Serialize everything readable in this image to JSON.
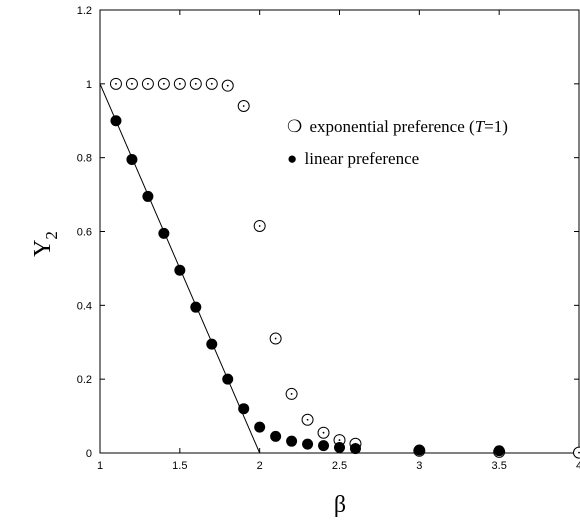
{
  "chart_data": {
    "type": "scatter",
    "xlabel": "β",
    "ylabel_main": "Y",
    "ylabel_sub": "2",
    "xlim": [
      1,
      4
    ],
    "ylim": [
      0,
      1.2
    ],
    "xticks": [
      1,
      1.5,
      2,
      2.5,
      3,
      3.5,
      4
    ],
    "yticks": [
      0,
      0.2,
      0.4,
      0.6,
      0.8,
      1,
      1.2
    ],
    "xtick_labels": [
      "1",
      "1.5",
      "2",
      "2.5",
      "3",
      "3.5",
      "4"
    ],
    "ytick_labels": [
      "0",
      "0.2",
      "0.4",
      "0.6",
      "0.8",
      "1",
      "1.2"
    ],
    "grid": false,
    "legend_position": "top-right",
    "legend": [
      {
        "symbol": "❍",
        "label_pre": "exponential preference (",
        "label_italic": "T",
        "label_post": "=1)"
      },
      {
        "symbol": "●",
        "label": "linear preference"
      }
    ],
    "series": [
      {
        "name": "exponential preference (T=1)",
        "marker": "open-circle-dot",
        "x": [
          1.1,
          1.2,
          1.3,
          1.4,
          1.5,
          1.6,
          1.7,
          1.8,
          1.9,
          2.0,
          2.1,
          2.2,
          2.3,
          2.4,
          2.5,
          2.6,
          3.0,
          3.5,
          4.0
        ],
        "y": [
          1.0,
          1.0,
          1.0,
          1.0,
          1.0,
          1.0,
          1.0,
          0.995,
          0.94,
          0.615,
          0.31,
          0.16,
          0.09,
          0.055,
          0.035,
          0.025,
          0.006,
          0.003,
          0.001
        ]
      },
      {
        "name": "linear preference",
        "marker": "filled-circle",
        "x": [
          1.1,
          1.2,
          1.3,
          1.4,
          1.5,
          1.6,
          1.7,
          1.8,
          1.9,
          2.0,
          2.1,
          2.2,
          2.3,
          2.4,
          2.5,
          2.6,
          3.0,
          3.5
        ],
        "y": [
          0.9,
          0.795,
          0.695,
          0.595,
          0.495,
          0.395,
          0.295,
          0.2,
          0.12,
          0.07,
          0.045,
          0.032,
          0.024,
          0.02,
          0.015,
          0.012,
          0.008,
          0.006
        ]
      },
      {
        "name": "line",
        "marker": "line",
        "x": [
          1.0,
          2.0
        ],
        "y": [
          1.0,
          0.0
        ]
      }
    ]
  }
}
